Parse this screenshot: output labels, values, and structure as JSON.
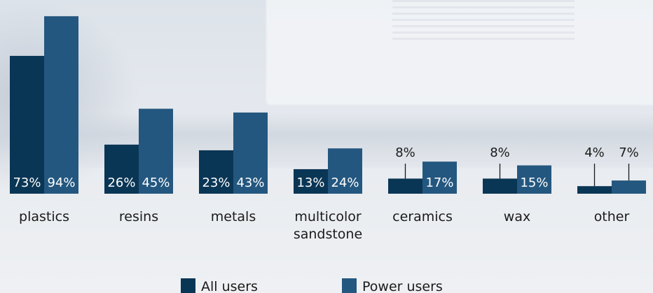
{
  "chart_data": {
    "type": "bar",
    "categories": [
      "plastics",
      "resins",
      "metals",
      "multicolor sandstone",
      "ceramics",
      "wax",
      "other"
    ],
    "category_lines": [
      [
        "plastics"
      ],
      [
        "resins"
      ],
      [
        "metals"
      ],
      [
        "multicolor",
        "sandstone"
      ],
      [
        "ceramics"
      ],
      [
        "wax"
      ],
      [
        "other"
      ]
    ],
    "series": [
      {
        "name": "All users",
        "values": [
          73,
          26,
          23,
          13,
          8,
          8,
          4
        ],
        "labels": [
          "73%",
          "26%",
          "23%",
          "13%",
          "8%",
          "8%",
          "4%"
        ],
        "color": "#0a3655"
      },
      {
        "name": "Power users",
        "values": [
          94,
          45,
          43,
          24,
          17,
          15,
          7
        ],
        "labels": [
          "94%",
          "45%",
          "43%",
          "24%",
          "17%",
          "15%",
          "7%"
        ],
        "color": "#24577f"
      }
    ],
    "ylim": [
      0,
      100
    ],
    "grid": false,
    "legend_position": "bottom-center"
  }
}
